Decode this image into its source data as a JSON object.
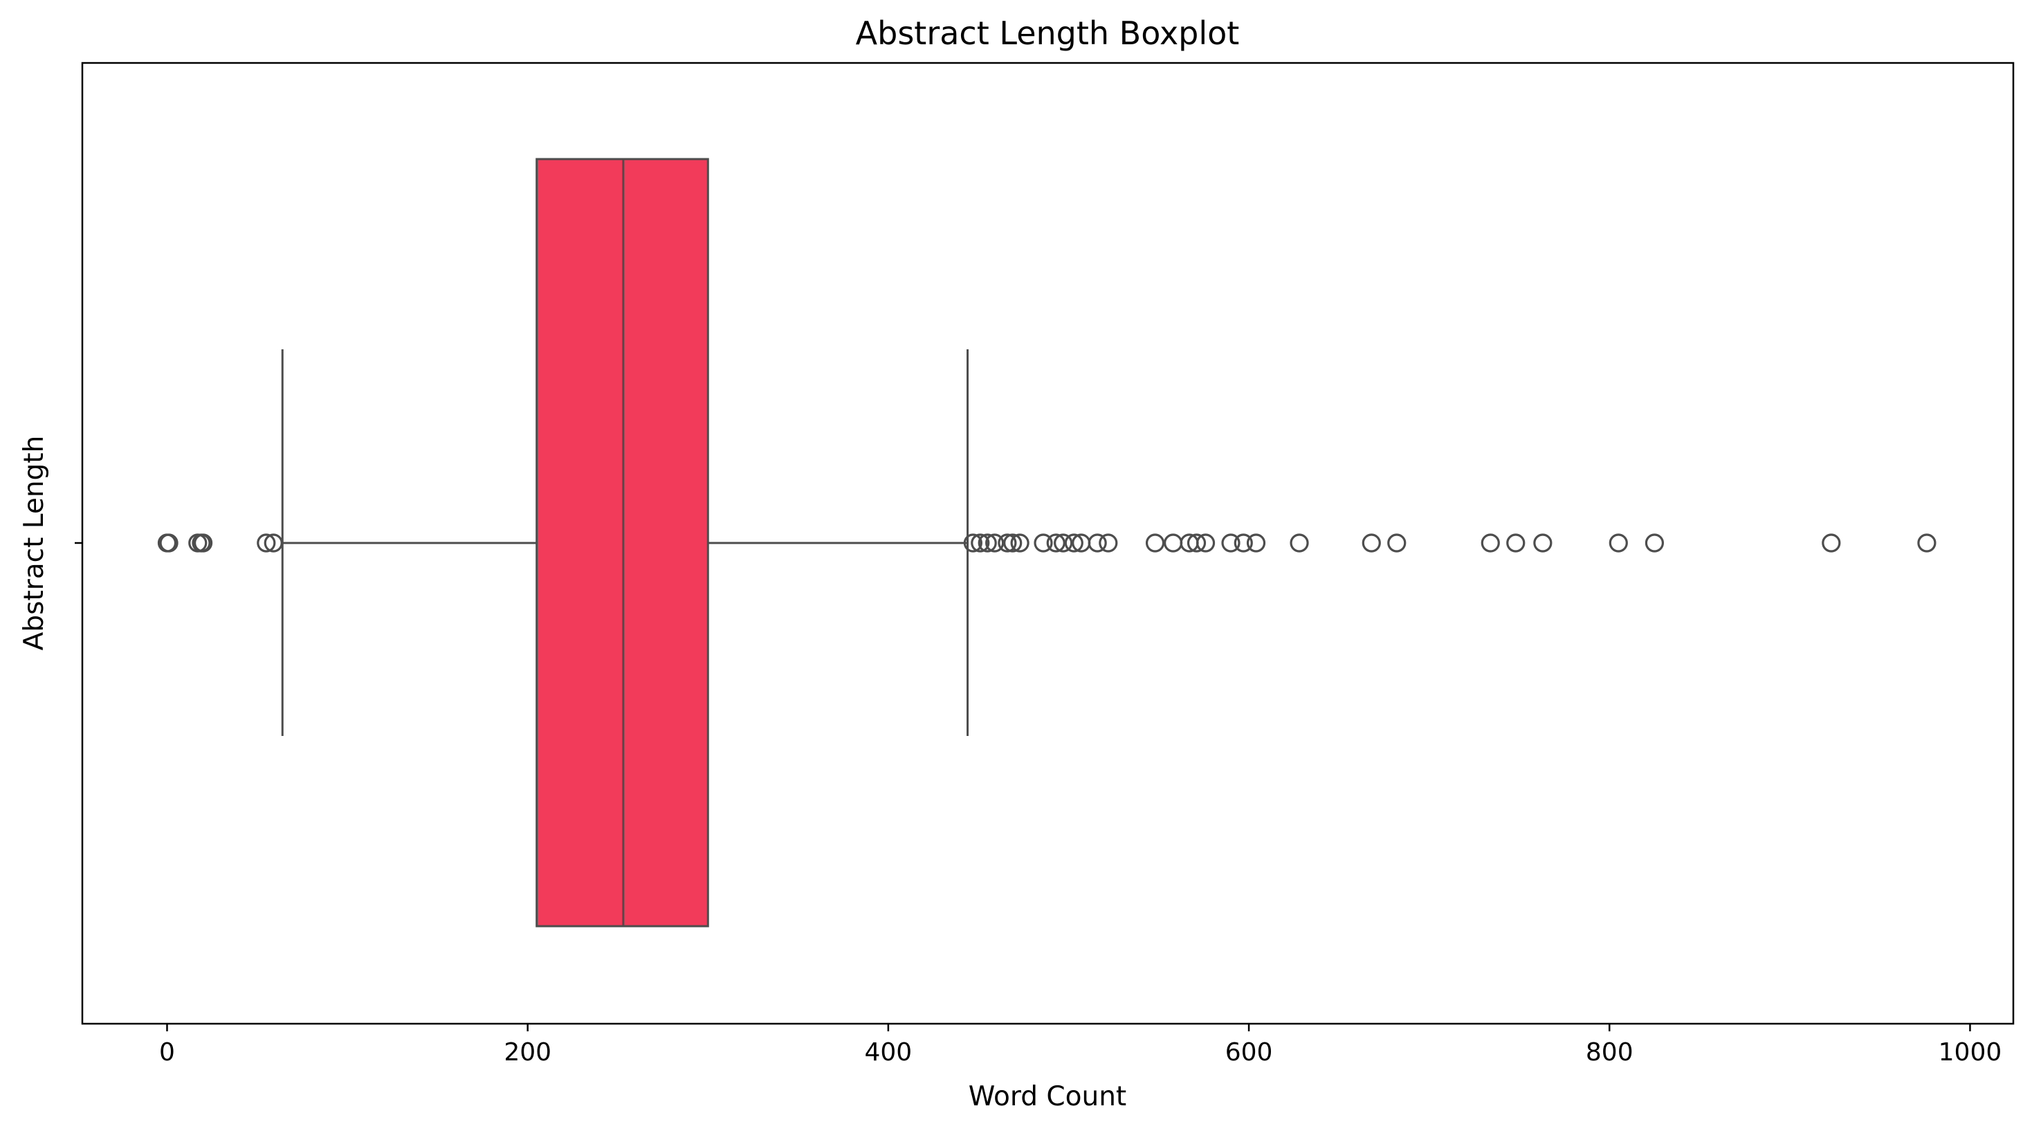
{
  "chart_data": {
    "type": "boxplot",
    "title": "Abstract Length Boxplot",
    "xlabel": "Word Count",
    "ylabel": "Abstract Length",
    "xlim": [
      -47,
      1024
    ],
    "xticks": [
      0,
      200,
      400,
      600,
      800,
      1000
    ],
    "orientation": "horizontal",
    "grid": false,
    "legend": "none",
    "colors": {
      "box_fill": "#F23B5A",
      "line": "#4D4D4D",
      "frame": "#000000"
    },
    "box": {
      "q1": 205,
      "median": 253,
      "q3": 300,
      "whisker_low": 64,
      "whisker_high": 444
    },
    "outliers": [
      0,
      1,
      17,
      19,
      20,
      55,
      59,
      447,
      451,
      455,
      459,
      466,
      469,
      473,
      486,
      493,
      497,
      503,
      507,
      516,
      522,
      548,
      558,
      567,
      571,
      576,
      590,
      597,
      604,
      628,
      668,
      682,
      734,
      748,
      763,
      805,
      825,
      923,
      976
    ]
  }
}
